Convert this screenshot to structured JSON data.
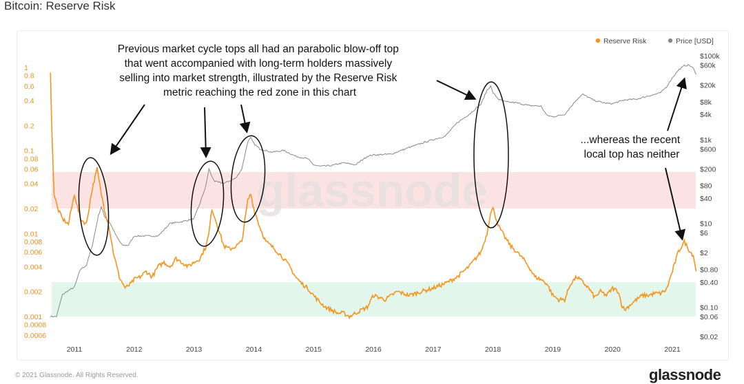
{
  "page": {
    "title": "Bitcoin: Reserve Risk",
    "copyright": "© 2021 Glassnode. All Rights Reserved.",
    "footer_logo": "glassnode"
  },
  "chart_data": {
    "type": "line",
    "title": "Bitcoin: Reserve Risk",
    "watermark": "glassnode",
    "legend": [
      {
        "name": "Reserve Risk",
        "color": "#f7931a"
      },
      {
        "name": "Price [USD]",
        "color": "#888888"
      }
    ],
    "legend_placement": "top-right",
    "x_ticks": [
      "2011",
      "2012",
      "2013",
      "2014",
      "2015",
      "2016",
      "2017",
      "2018",
      "2019",
      "2020",
      "2021"
    ],
    "left_axis": {
      "scale": "log",
      "ticks": [
        "1",
        "0.8",
        "0.6",
        "0.4",
        "0.2",
        "0.1",
        "0.08",
        "0.06",
        "0.04",
        "0.02",
        "0.01",
        "0.008",
        "0.006",
        "0.004",
        "0.002",
        "0.001",
        "0.0008",
        "0.0006"
      ]
    },
    "right_axis": {
      "scale": "log",
      "ticks": [
        "$100k",
        "$60k",
        "$20k",
        "$8k",
        "$4k",
        "$1k",
        "$600",
        "$200",
        "$80",
        "$40",
        "$10",
        "$6",
        "$2",
        "$0.80",
        "$0.40",
        "$0.10",
        "$0.06",
        "$0.02"
      ]
    },
    "zones": [
      {
        "name": "red-zone",
        "from": 0.02,
        "to": 0.055,
        "color": "#fbe3e3"
      },
      {
        "name": "green-zone",
        "from": 0.001,
        "to": 0.0026,
        "color": "#e3f6ec"
      }
    ],
    "series": [
      {
        "name": "Reserve Risk",
        "x": [
          2010.6,
          2010.62,
          2010.66,
          2010.72,
          2010.8,
          2010.9,
          2011.0,
          2011.1,
          2011.2,
          2011.3,
          2011.38,
          2011.45,
          2011.5,
          2011.58,
          2011.65,
          2011.75,
          2011.85,
          2011.95,
          2012.0,
          2012.1,
          2012.2,
          2012.3,
          2012.4,
          2012.5,
          2012.6,
          2012.7,
          2012.8,
          2012.9,
          2013.0,
          2013.1,
          2013.2,
          2013.25,
          2013.3,
          2013.4,
          2013.5,
          2013.6,
          2013.7,
          2013.8,
          2013.9,
          2013.95,
          2014.0,
          2014.1,
          2014.2,
          2014.3,
          2014.4,
          2014.5,
          2014.6,
          2014.7,
          2014.8,
          2014.9,
          2015.0,
          2015.1,
          2015.2,
          2015.3,
          2015.4,
          2015.5,
          2015.6,
          2015.7,
          2015.8,
          2015.9,
          2016.0,
          2016.2,
          2016.4,
          2016.6,
          2016.8,
          2017.0,
          2017.2,
          2017.4,
          2017.6,
          2017.8,
          2017.9,
          2017.96,
          2018.0,
          2018.1,
          2018.2,
          2018.3,
          2018.4,
          2018.5,
          2018.6,
          2018.7,
          2018.8,
          2018.9,
          2019.0,
          2019.1,
          2019.2,
          2019.3,
          2019.4,
          2019.5,
          2019.6,
          2019.7,
          2019.8,
          2019.9,
          2020.0,
          2020.1,
          2020.15,
          2020.2,
          2020.3,
          2020.4,
          2020.5,
          2020.6,
          2020.7,
          2020.8,
          2020.9,
          2021.0,
          2021.1,
          2021.2,
          2021.3,
          2021.35,
          2021.4
        ],
        "values": [
          0.9,
          0.2,
          0.03,
          0.02,
          0.015,
          0.013,
          0.03,
          0.015,
          0.013,
          0.035,
          0.06,
          0.03,
          0.02,
          0.012,
          0.006,
          0.003,
          0.0022,
          0.0025,
          0.0028,
          0.003,
          0.0035,
          0.003,
          0.004,
          0.0045,
          0.004,
          0.005,
          0.0045,
          0.004,
          0.0045,
          0.005,
          0.007,
          0.01,
          0.02,
          0.012,
          0.007,
          0.0065,
          0.007,
          0.008,
          0.025,
          0.03,
          0.02,
          0.012,
          0.008,
          0.007,
          0.006,
          0.005,
          0.004,
          0.003,
          0.0025,
          0.0022,
          0.0018,
          0.0015,
          0.0013,
          0.0012,
          0.0011,
          0.0011,
          0.001,
          0.0011,
          0.0012,
          0.0013,
          0.0018,
          0.0016,
          0.002,
          0.0018,
          0.002,
          0.0022,
          0.0025,
          0.003,
          0.004,
          0.006,
          0.01,
          0.018,
          0.02,
          0.012,
          0.009,
          0.007,
          0.006,
          0.005,
          0.004,
          0.003,
          0.0028,
          0.0025,
          0.0018,
          0.0016,
          0.0016,
          0.0025,
          0.003,
          0.0026,
          0.0022,
          0.0017,
          0.002,
          0.0018,
          0.0022,
          0.002,
          0.0014,
          0.0012,
          0.0014,
          0.0016,
          0.0018,
          0.0018,
          0.0019,
          0.0019,
          0.0021,
          0.0035,
          0.006,
          0.008,
          0.006,
          0.0055,
          0.0035
        ]
      },
      {
        "name": "Price [USD]",
        "x": [
          2010.6,
          2010.7,
          2010.8,
          2010.9,
          2011.0,
          2011.1,
          2011.2,
          2011.3,
          2011.4,
          2011.45,
          2011.5,
          2011.6,
          2011.7,
          2011.8,
          2011.9,
          2012.0,
          2012.2,
          2012.4,
          2012.6,
          2012.8,
          2013.0,
          2013.1,
          2013.2,
          2013.25,
          2013.3,
          2013.35,
          2013.5,
          2013.7,
          2013.8,
          2013.9,
          2013.95,
          2014.0,
          2014.1,
          2014.3,
          2014.5,
          2014.7,
          2014.9,
          2015.0,
          2015.1,
          2015.3,
          2015.5,
          2015.7,
          2015.9,
          2016.0,
          2016.3,
          2016.6,
          2016.9,
          2017.0,
          2017.2,
          2017.4,
          2017.6,
          2017.8,
          2017.9,
          2017.96,
          2018.0,
          2018.1,
          2018.2,
          2018.4,
          2018.6,
          2018.8,
          2018.9,
          2019.0,
          2019.2,
          2019.4,
          2019.5,
          2019.7,
          2019.9,
          2020.0,
          2020.2,
          2020.4,
          2020.6,
          2020.8,
          2020.9,
          2021.0,
          2021.1,
          2021.2,
          2021.28,
          2021.35,
          2021.4
        ],
        "values": [
          0.06,
          0.06,
          0.2,
          0.25,
          0.3,
          0.8,
          1,
          3,
          15,
          25,
          15,
          10,
          5,
          3,
          3,
          5,
          5,
          5,
          10,
          11,
          13,
          30,
          80,
          200,
          130,
          100,
          90,
          120,
          200,
          900,
          1100,
          800,
          600,
          500,
          550,
          400,
          350,
          250,
          230,
          240,
          280,
          250,
          400,
          430,
          450,
          650,
          900,
          1000,
          1200,
          2500,
          4000,
          7000,
          15000,
          19000,
          13000,
          9000,
          8000,
          7500,
          6500,
          6300,
          3800,
          3500,
          4000,
          9000,
          12000,
          8500,
          7300,
          7200,
          8800,
          9200,
          11000,
          13000,
          18000,
          30000,
          45000,
          58000,
          60000,
          50000,
          36000
        ]
      }
    ],
    "annotations": [
      {
        "name": "annotation-main",
        "lines": [
          "Previous market cycle tops all had an parabolic blow-off top",
          "that went accompanied with long-term holders massively",
          "selling into market strength, illustrated by the Reserve Risk",
          "metric reaching the red zone in this chart"
        ]
      },
      {
        "name": "annotation-recent",
        "lines": [
          "...whereas the recent",
          "local top has neither"
        ]
      }
    ]
  }
}
